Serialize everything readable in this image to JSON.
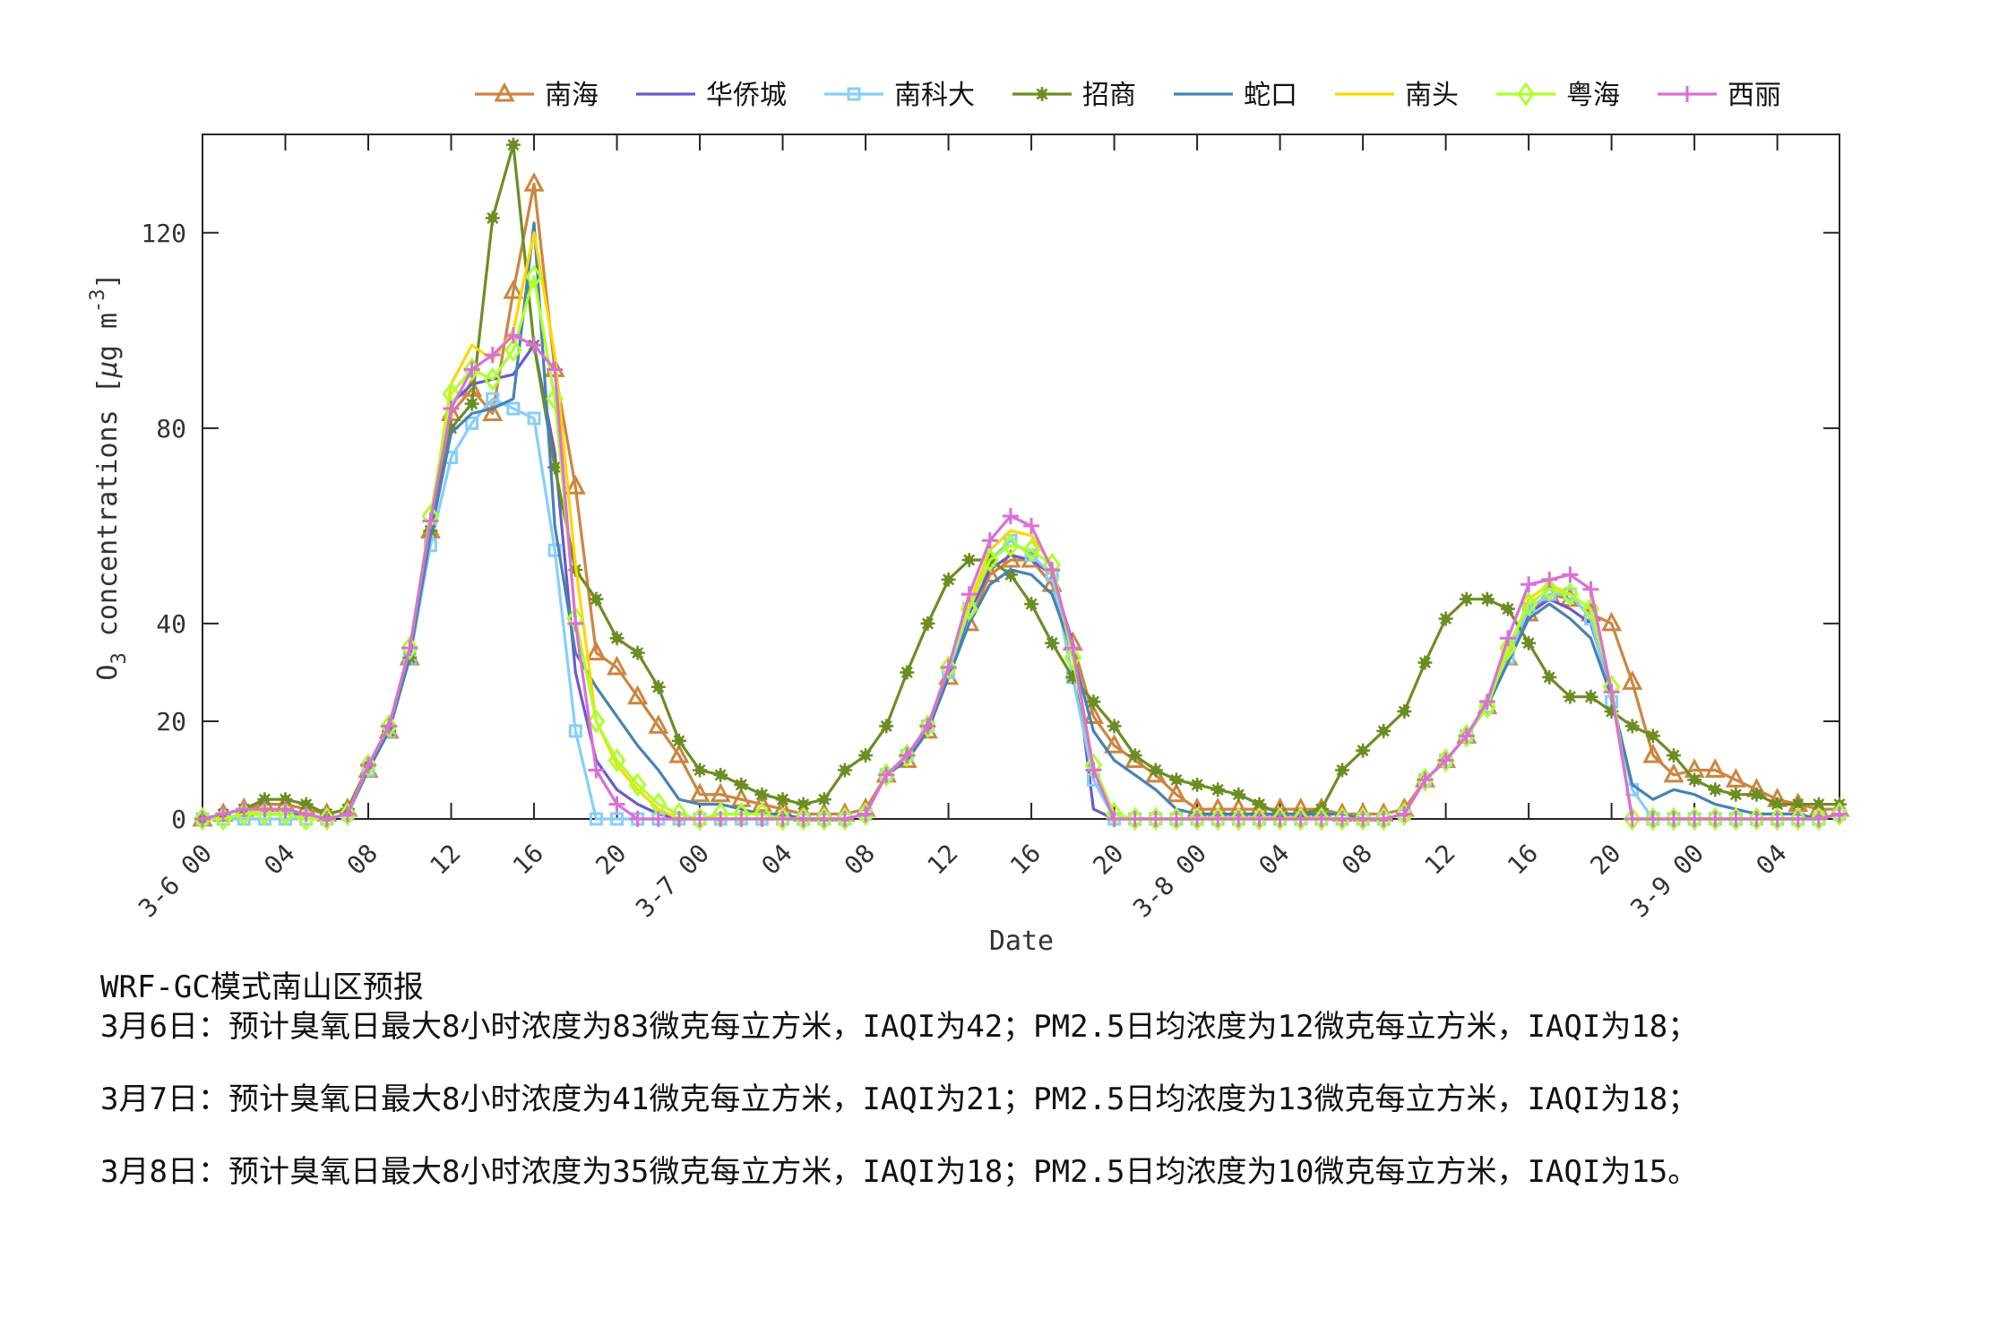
{
  "chart_data": {
    "type": "line",
    "title": "",
    "xlabel": "Date",
    "ylabel": "O3 concentrations [μg m-3]",
    "ylabel_parts": {
      "main": "O",
      "sub": "3",
      "rest": " concentrations [",
      "mu": "μ",
      "unit": "g m",
      "sup": "-3",
      "close": "]"
    },
    "ylim": [
      0,
      140
    ],
    "yticks": [
      0,
      20,
      40,
      80,
      120
    ],
    "x_unit": "hour index from 3-6 00",
    "x": [
      0,
      1,
      2,
      3,
      4,
      5,
      6,
      7,
      8,
      9,
      10,
      11,
      12,
      13,
      14,
      15,
      16,
      17,
      18,
      19,
      20,
      21,
      22,
      23,
      24,
      25,
      26,
      27,
      28,
      29,
      30,
      31,
      32,
      33,
      34,
      35,
      36,
      37,
      38,
      39,
      40,
      41,
      42,
      43,
      44,
      45,
      46,
      47,
      48,
      49,
      50,
      51,
      52,
      53,
      54,
      55,
      56,
      57,
      58,
      59,
      60,
      61,
      62,
      63,
      64,
      65,
      66,
      67,
      68,
      69,
      70,
      71,
      72,
      73,
      74,
      75,
      76,
      77,
      78,
      79
    ],
    "xlim": [
      0,
      79
    ],
    "xticks": [
      {
        "h": 0,
        "label": "00",
        "date": "3-6"
      },
      {
        "h": 4,
        "label": "04"
      },
      {
        "h": 8,
        "label": "08"
      },
      {
        "h": 12,
        "label": "12"
      },
      {
        "h": 16,
        "label": "16"
      },
      {
        "h": 20,
        "label": "20"
      },
      {
        "h": 24,
        "label": "00",
        "date": "3-7"
      },
      {
        "h": 28,
        "label": "04"
      },
      {
        "h": 32,
        "label": "08"
      },
      {
        "h": 36,
        "label": "12"
      },
      {
        "h": 40,
        "label": "16"
      },
      {
        "h": 44,
        "label": "20"
      },
      {
        "h": 48,
        "label": "00",
        "date": "3-8"
      },
      {
        "h": 52,
        "label": "04"
      },
      {
        "h": 56,
        "label": "08"
      },
      {
        "h": 60,
        "label": "12"
      },
      {
        "h": 64,
        "label": "16"
      },
      {
        "h": 68,
        "label": "20"
      },
      {
        "h": 72,
        "label": "00",
        "date": "3-9"
      },
      {
        "h": 76,
        "label": "04"
      }
    ],
    "grid": false,
    "legend_position": "top",
    "series": [
      {
        "name": "南海",
        "color": "#cd853f",
        "marker": "triangle",
        "values": [
          0,
          1,
          2,
          3,
          3,
          2,
          1,
          2,
          10,
          18,
          33,
          59,
          83,
          88,
          83,
          108,
          130,
          92,
          68,
          34,
          31,
          25,
          19,
          13,
          5,
          5,
          4,
          3,
          2,
          1,
          1,
          1,
          2,
          9,
          12,
          18,
          29,
          40,
          50,
          53,
          53,
          48,
          36,
          21,
          15,
          12,
          9,
          5,
          2,
          2,
          2,
          2,
          2,
          2,
          2,
          1,
          1,
          1,
          2,
          8,
          12,
          17,
          23,
          33,
          42,
          46,
          45,
          42,
          40,
          28,
          13,
          9,
          10,
          10,
          8,
          6,
          4,
          3,
          2,
          2
        ]
      },
      {
        "name": "华侨城",
        "color": "#6a5acd",
        "marker": "none",
        "values": [
          0,
          0,
          1,
          1,
          1,
          1,
          0,
          1,
          11,
          19,
          34,
          60,
          85,
          89,
          90,
          91,
          97,
          75,
          30,
          12,
          6,
          3,
          1,
          0,
          0,
          0,
          0,
          0,
          0,
          0,
          0,
          0,
          1,
          9,
          13,
          19,
          30,
          42,
          51,
          54,
          53,
          50,
          36,
          2,
          0,
          0,
          0,
          0,
          0,
          0,
          0,
          0,
          0,
          0,
          0,
          0,
          0,
          0,
          1,
          8,
          12,
          17,
          23,
          33,
          42,
          45,
          43,
          40,
          26,
          0,
          0,
          0,
          0,
          0,
          0,
          0,
          0,
          0,
          0,
          1
        ]
      },
      {
        "name": "南科大",
        "color": "#87cefa",
        "marker": "square",
        "values": [
          0,
          0,
          0,
          0,
          0,
          0,
          0,
          1,
          10,
          18,
          33,
          56,
          74,
          81,
          86,
          84,
          82,
          55,
          18,
          0,
          0,
          0,
          0,
          0,
          0,
          0,
          0,
          0,
          0,
          0,
          0,
          0,
          1,
          9,
          13,
          19,
          30,
          43,
          53,
          57,
          54,
          50,
          29,
          8,
          0,
          0,
          0,
          0,
          0,
          0,
          0,
          0,
          0,
          0,
          0,
          0,
          0,
          0,
          1,
          8,
          12,
          17,
          23,
          33,
          43,
          46,
          46,
          41,
          24,
          6,
          0,
          0,
          0,
          0,
          0,
          0,
          0,
          0,
          0,
          1
        ]
      },
      {
        "name": "招商",
        "color": "#6b8e23",
        "marker": "star",
        "values": [
          0,
          1,
          2,
          4,
          4,
          3,
          1,
          2,
          11,
          18,
          33,
          59,
          80,
          85,
          123,
          138,
          97,
          72,
          51,
          45,
          37,
          34,
          27,
          16,
          10,
          9,
          7,
          5,
          4,
          3,
          4,
          10,
          13,
          19,
          30,
          40,
          49,
          53,
          53,
          50,
          44,
          36,
          29,
          24,
          19,
          13,
          10,
          8,
          7,
          6,
          5,
          3,
          1,
          1,
          2,
          10,
          14,
          18,
          22,
          32,
          41,
          45,
          45,
          43,
          36,
          29,
          25,
          25,
          22,
          19,
          17,
          13,
          8,
          6,
          5,
          5,
          3,
          3,
          3,
          3
        ]
      },
      {
        "name": "蛇口",
        "color": "#4682b4",
        "marker": "none",
        "values": [
          0,
          0,
          1,
          1,
          1,
          1,
          0,
          1,
          10,
          18,
          33,
          58,
          79,
          83,
          84,
          86,
          122,
          60,
          34,
          27,
          21,
          15,
          10,
          4,
          3,
          3,
          2,
          1,
          1,
          0,
          0,
          0,
          1,
          9,
          12,
          18,
          29,
          40,
          48,
          51,
          50,
          46,
          34,
          18,
          12,
          9,
          6,
          2,
          1,
          1,
          1,
          1,
          1,
          1,
          1,
          1,
          0,
          0,
          1,
          8,
          12,
          17,
          23,
          32,
          41,
          44,
          41,
          37,
          25,
          7,
          4,
          6,
          5,
          3,
          2,
          1,
          1,
          1,
          0,
          1
        ]
      },
      {
        "name": "南头",
        "color": "#ffd700",
        "marker": "none",
        "values": [
          0,
          0,
          1,
          2,
          2,
          1,
          0,
          1,
          11,
          19,
          35,
          61,
          89,
          97,
          94,
          100,
          120,
          95,
          52,
          20,
          11,
          6,
          2,
          0,
          0,
          0,
          0,
          0,
          0,
          0,
          0,
          0,
          1,
          9,
          13,
          19,
          31,
          44,
          55,
          59,
          58,
          52,
          34,
          10,
          1,
          0,
          0,
          0,
          0,
          0,
          0,
          0,
          0,
          0,
          0,
          0,
          0,
          0,
          1,
          8,
          12,
          17,
          24,
          34,
          45,
          48,
          46,
          43,
          27,
          0,
          0,
          0,
          0,
          0,
          0,
          0,
          0,
          0,
          0,
          1
        ]
      },
      {
        "name": "粤海",
        "color": "#adff2f",
        "marker": "diamond",
        "values": [
          0,
          0,
          1,
          1,
          1,
          0,
          0,
          1,
          11,
          19,
          35,
          62,
          87,
          92,
          90,
          96,
          111,
          86,
          41,
          20,
          12,
          7,
          3,
          1,
          0,
          1,
          1,
          1,
          0,
          0,
          0,
          0,
          1,
          9,
          13,
          19,
          31,
          43,
          53,
          56,
          55,
          52,
          33,
          11,
          1,
          0,
          0,
          0,
          0,
          0,
          0,
          0,
          0,
          0,
          0,
          0,
          0,
          0,
          1,
          8,
          12,
          17,
          23,
          35,
          44,
          47,
          46,
          43,
          27,
          0,
          0,
          0,
          0,
          0,
          0,
          0,
          0,
          0,
          0,
          1
        ]
      },
      {
        "name": "西丽",
        "color": "#da70d6",
        "marker": "plus",
        "values": [
          0,
          1,
          2,
          2,
          2,
          1,
          0,
          1,
          11,
          19,
          35,
          61,
          84,
          92,
          95,
          99,
          97,
          92,
          40,
          10,
          3,
          0,
          0,
          0,
          0,
          0,
          0,
          0,
          0,
          0,
          0,
          0,
          1,
          9,
          13,
          19,
          31,
          46,
          57,
          62,
          60,
          51,
          35,
          10,
          0,
          0,
          0,
          0,
          0,
          0,
          0,
          0,
          0,
          0,
          0,
          0,
          0,
          0,
          1,
          8,
          12,
          17,
          24,
          37,
          48,
          49,
          50,
          47,
          26,
          0,
          0,
          0,
          0,
          0,
          0,
          0,
          0,
          0,
          0,
          1
        ]
      }
    ]
  },
  "forecast": {
    "title": "WRF-GC模式南山区预报",
    "lines": [
      "3月6日：预计臭氧日最大8小时浓度为83微克每立方米，IAQI为42；PM2.5日均浓度为12微克每立方米，IAQI为18；",
      "3月7日：预计臭氧日最大8小时浓度为41微克每立方米，IAQI为21；PM2.5日均浓度为13微克每立方米，IAQI为18；",
      "3月8日：预计臭氧日最大8小时浓度为35微克每立方米，IAQI为18；PM2.5日均浓度为10微克每立方米，IAQI为15。"
    ],
    "days": [
      {
        "date": "3月6日",
        "o3_max8h": 83,
        "o3_iaqi": 42,
        "pm25_daily": 12,
        "pm25_iaqi": 18
      },
      {
        "date": "3月7日",
        "o3_max8h": 41,
        "o3_iaqi": 21,
        "pm25_daily": 13,
        "pm25_iaqi": 18
      },
      {
        "date": "3月8日",
        "o3_max8h": 35,
        "o3_iaqi": 18,
        "pm25_daily": 10,
        "pm25_iaqi": 15
      }
    ]
  }
}
